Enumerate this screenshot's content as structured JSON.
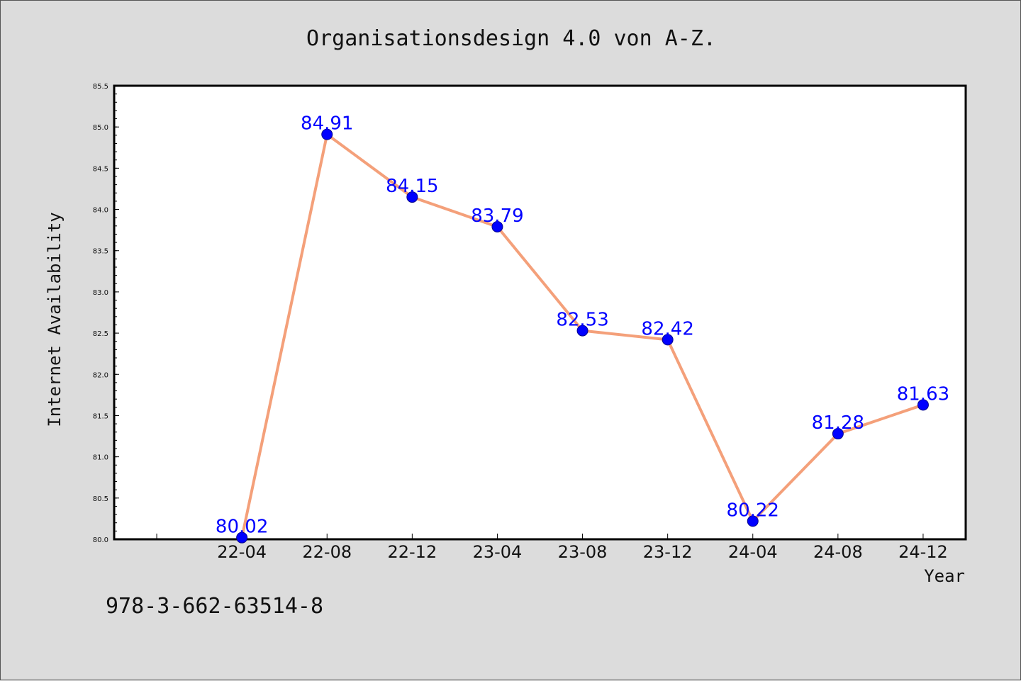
{
  "chart_data": {
    "type": "line",
    "title": "Organisationsdesign 4.0 von A-Z.",
    "xlabel": "Year",
    "ylabel": "Internet Availability",
    "categories": [
      "22-04",
      "22-08",
      "22-12",
      "23-04",
      "23-08",
      "23-12",
      "24-04",
      "24-08",
      "24-12"
    ],
    "series": [
      {
        "values": [
          80.02,
          84.91,
          84.15,
          83.79,
          82.53,
          82.42,
          80.22,
          81.28,
          81.63
        ],
        "data_labels": [
          "80.02",
          "84.91",
          "84.15",
          "83.79",
          "82.53",
          "82.42",
          "80.22",
          "81.28",
          "81.63"
        ],
        "line_color": "#f4a07a",
        "marker_color": "#0000ff",
        "label_color": "#0000ff"
      }
    ],
    "ylim": [
      80.0,
      85.5
    ],
    "yticks": [
      "80.0",
      "80.5",
      "81.0",
      "81.5",
      "82.0",
      "82.5",
      "83.0",
      "83.5",
      "84.0",
      "84.5",
      "85.0",
      "85.5"
    ],
    "grid": false,
    "legend": "none"
  },
  "footer_text": "978-3-662-63514-8",
  "colors": {
    "background": "#dcdcdc",
    "plot_background": "#ffffff"
  }
}
